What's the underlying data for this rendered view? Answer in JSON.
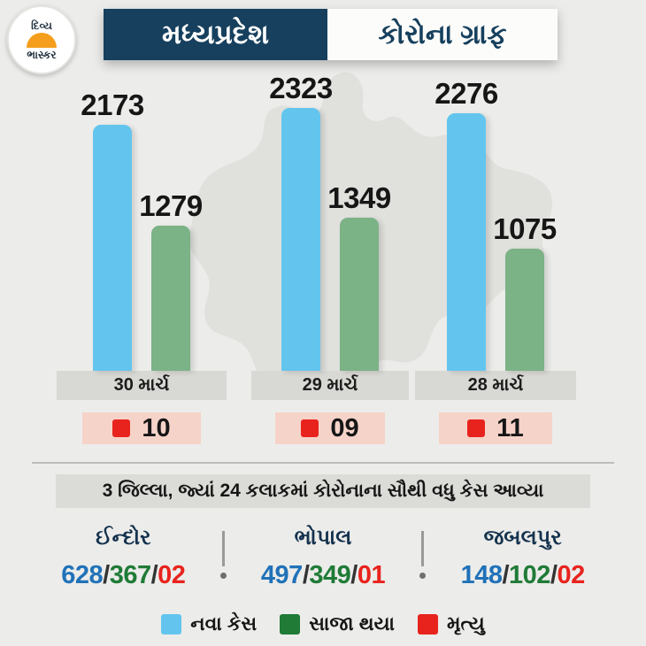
{
  "colors": {
    "background": "#ECECEA",
    "map_silhouette": "#E0E0DD",
    "navy": "#16405E",
    "bar_blue": "#63C5EE",
    "bar_green": "#7BB286",
    "red": "#E8231D",
    "legend_green": "#1F7B36",
    "district_blue": "#2072B8",
    "date_box": "#D8D8D4",
    "death_box": "#F6D3C9"
  },
  "logo": {
    "line1": "દિવ્ય",
    "line2": "ભાસ્કર"
  },
  "header": {
    "title": "મધ્યપ્રદેશ",
    "subtitle": "કોરોના ગ્રાફ"
  },
  "chart_data": {
    "type": "bar",
    "title": "મધ્યપ્રદેશ કોરોના ગ્રાફ",
    "categories": [
      "30 માર્ચ",
      "29 માર્ચ",
      "28 માર્ચ"
    ],
    "series": [
      {
        "name": "નવા કેસ",
        "color": "#63C5EE",
        "values": [
          2173,
          2323,
          2276
        ]
      },
      {
        "name": "સાજા થયા",
        "color": "#7BB286",
        "values": [
          1279,
          1349,
          1075
        ]
      },
      {
        "name": "મૃત્યુ",
        "color": "#E8231D",
        "values": [
          10,
          9,
          11
        ],
        "display": [
          "10",
          "09",
          "11"
        ]
      }
    ],
    "ylim": [
      0,
      2400
    ],
    "grid": false,
    "legend_position": "bottom"
  },
  "districts": {
    "title": "3 જિલ્લા, જ્યાં 24 કલાકમાં કોરોનાના સૌથી વધુ કેસ આવ્યા",
    "separator": "/",
    "items": [
      {
        "name": "ઈન્દોર",
        "new_cases": "628",
        "recovered": "367",
        "deaths": "02"
      },
      {
        "name": "ભોપાલ",
        "new_cases": "497",
        "recovered": "349",
        "deaths": "01"
      },
      {
        "name": "જબલપુર",
        "new_cases": "148",
        "recovered": "102",
        "deaths": "02"
      }
    ]
  },
  "legend": {
    "items": [
      {
        "label": "નવા કેસ",
        "color": "#63C5EE"
      },
      {
        "label": "સાજા થયા",
        "color": "#1F7B36"
      },
      {
        "label": "મૃત્યુ",
        "color": "#E8231D"
      }
    ]
  }
}
